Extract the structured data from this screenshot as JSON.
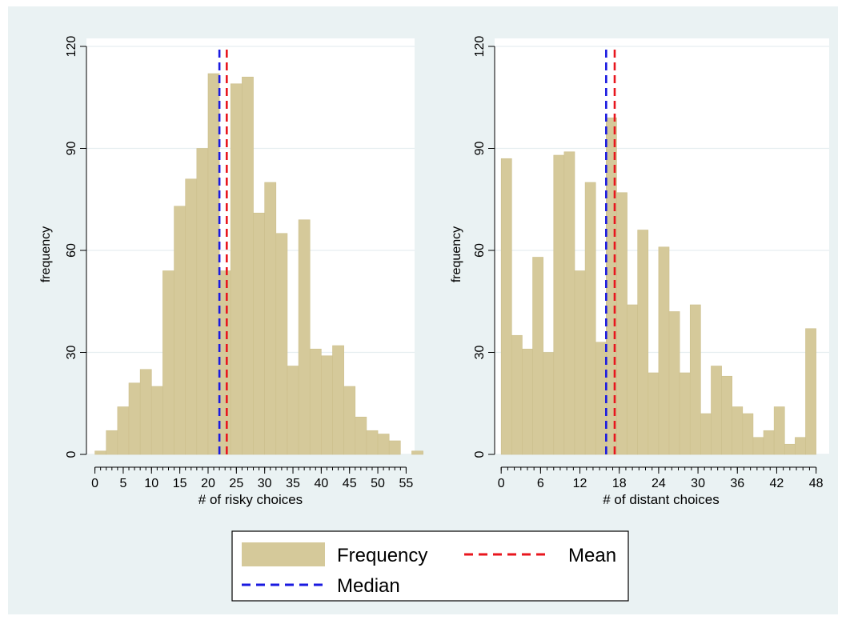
{
  "colors": {
    "background": "#eaf2f3",
    "bar_fill": "#d5c99a",
    "bar_edge": "#ccbf8c",
    "mean_line": "#e8161e",
    "median_line": "#1a1ae0",
    "gridline": "#e6eef0"
  },
  "legend": {
    "frequency_label": "Frequency",
    "mean_label": "Mean",
    "median_label": "Median",
    "position": "bottom-center"
  },
  "chart_data": [
    {
      "type": "bar",
      "xlabel": "# of risky choices",
      "ylabel": "frequency",
      "ylim": [
        0,
        120
      ],
      "yticks": [
        0,
        30,
        60,
        90,
        120
      ],
      "xlim": [
        -1.5,
        56.5
      ],
      "xticks": [
        0,
        5,
        10,
        15,
        20,
        25,
        30,
        35,
        40,
        45,
        50,
        55
      ],
      "xticks_minor_step": 1,
      "bin_width": 2,
      "bins": [
        {
          "x": 0,
          "value": 1
        },
        {
          "x": 2,
          "value": 7
        },
        {
          "x": 4,
          "value": 14
        },
        {
          "x": 6,
          "value": 21
        },
        {
          "x": 8,
          "value": 25
        },
        {
          "x": 10,
          "value": 20
        },
        {
          "x": 12,
          "value": 54
        },
        {
          "x": 14,
          "value": 73
        },
        {
          "x": 16,
          "value": 81
        },
        {
          "x": 18,
          "value": 90
        },
        {
          "x": 20,
          "value": 112
        },
        {
          "x": 22,
          "value": 54
        },
        {
          "x": 24,
          "value": 109
        },
        {
          "x": 26,
          "value": 111
        },
        {
          "x": 28,
          "value": 71
        },
        {
          "x": 30,
          "value": 80
        },
        {
          "x": 32,
          "value": 65
        },
        {
          "x": 34,
          "value": 26
        },
        {
          "x": 36,
          "value": 69
        },
        {
          "x": 38,
          "value": 31
        },
        {
          "x": 40,
          "value": 29
        },
        {
          "x": 42,
          "value": 32
        },
        {
          "x": 44,
          "value": 20
        },
        {
          "x": 46,
          "value": 11
        },
        {
          "x": 48,
          "value": 7
        },
        {
          "x": 50,
          "value": 6
        },
        {
          "x": 52,
          "value": 4
        },
        {
          "x": 54,
          "value": 0
        },
        {
          "x": 56,
          "value": 1
        }
      ],
      "median": 22,
      "mean": 23.3,
      "grid": true
    },
    {
      "type": "bar",
      "xlabel": "# of distant choices",
      "ylabel": "frequency",
      "ylim": [
        0,
        120
      ],
      "yticks": [
        0,
        30,
        60,
        90,
        120
      ],
      "xlim": [
        -1,
        50
      ],
      "xticks": [
        0,
        6,
        12,
        18,
        24,
        30,
        36,
        42,
        48
      ],
      "xticks_minor_step": 1,
      "bin_width": 1.6,
      "bins": [
        {
          "x": 0,
          "value": 87
        },
        {
          "x": 1.6,
          "value": 35
        },
        {
          "x": 3.2,
          "value": 31
        },
        {
          "x": 4.8,
          "value": 58
        },
        {
          "x": 6.4,
          "value": 30
        },
        {
          "x": 8.0,
          "value": 88
        },
        {
          "x": 9.6,
          "value": 89
        },
        {
          "x": 11.2,
          "value": 54
        },
        {
          "x": 12.8,
          "value": 80
        },
        {
          "x": 14.4,
          "value": 33
        },
        {
          "x": 16.0,
          "value": 99
        },
        {
          "x": 17.6,
          "value": 77
        },
        {
          "x": 19.2,
          "value": 44
        },
        {
          "x": 20.8,
          "value": 66
        },
        {
          "x": 22.4,
          "value": 24
        },
        {
          "x": 24.0,
          "value": 61
        },
        {
          "x": 25.6,
          "value": 42
        },
        {
          "x": 27.2,
          "value": 24
        },
        {
          "x": 28.8,
          "value": 44
        },
        {
          "x": 30.4,
          "value": 12
        },
        {
          "x": 32.0,
          "value": 26
        },
        {
          "x": 33.6,
          "value": 23
        },
        {
          "x": 35.2,
          "value": 14
        },
        {
          "x": 36.8,
          "value": 12
        },
        {
          "x": 38.4,
          "value": 5
        },
        {
          "x": 40.0,
          "value": 7
        },
        {
          "x": 41.6,
          "value": 14
        },
        {
          "x": 43.2,
          "value": 3
        },
        {
          "x": 44.8,
          "value": 5
        },
        {
          "x": 46.4,
          "value": 37
        }
      ],
      "median": 16,
      "mean": 17.3,
      "grid": true
    }
  ]
}
